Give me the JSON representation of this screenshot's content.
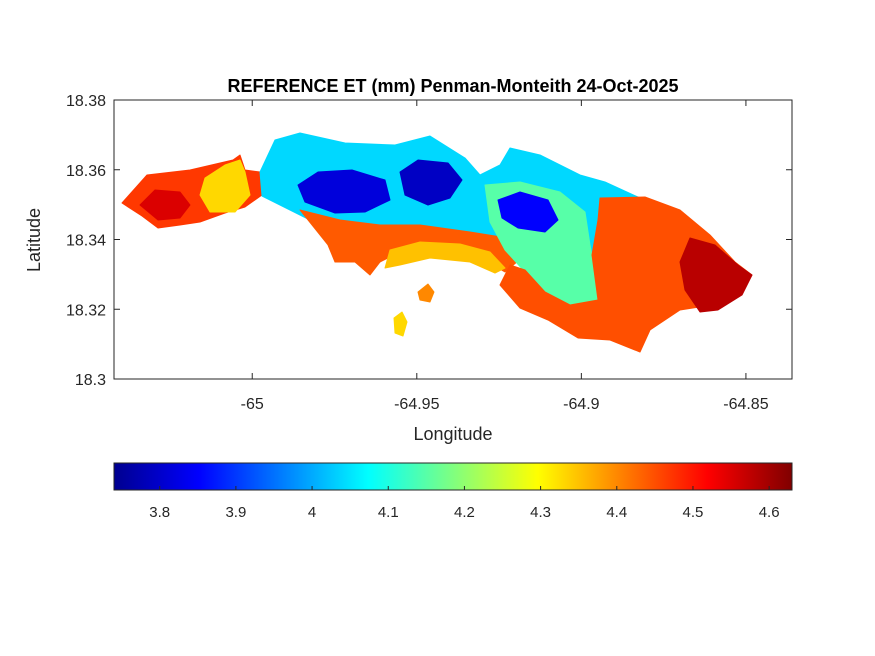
{
  "chart_data": {
    "type": "heatmap",
    "title": "REFERENCE ET (mm) Penman-Monteith 24-Oct-2025",
    "xlabel": "Longitude",
    "ylabel": "Latitude",
    "xlim": [
      -65.042,
      -64.836
    ],
    "ylim": [
      18.3,
      18.38
    ],
    "xticks": [
      -65,
      -64.95,
      -64.9,
      -64.85
    ],
    "xtick_labels": [
      "-65",
      "-64.95",
      "-64.9",
      "-64.85"
    ],
    "yticks": [
      18.3,
      18.32,
      18.34,
      18.36,
      18.38
    ],
    "ytick_labels": [
      "18.3",
      "18.32",
      "18.34",
      "18.36",
      "18.38"
    ],
    "colormap": "jet",
    "colorbar": {
      "range": [
        3.74,
        4.63
      ],
      "placement": "bottom",
      "ticks": [
        3.8,
        3.9,
        4.0,
        4.1,
        4.2,
        4.3,
        4.4,
        4.5,
        4.6
      ],
      "tick_labels": [
        "3.8",
        "3.9",
        "4",
        "4.1",
        "4.2",
        "4.3",
        "4.4",
        "4.5",
        "4.6"
      ]
    },
    "regions": [
      {
        "name": "west-lobe",
        "value": 4.47
      },
      {
        "name": "west-lobe-core",
        "value": 4.55
      },
      {
        "name": "west-neck",
        "value": 4.33
      },
      {
        "name": "central-north",
        "value": 4.04
      },
      {
        "name": "central-south-fringe",
        "value": 4.44
      },
      {
        "name": "central-low-1",
        "value": 3.82
      },
      {
        "name": "central-low-2",
        "value": 3.8
      },
      {
        "name": "east-band",
        "value": 4.15
      },
      {
        "name": "east-low",
        "value": 3.85
      },
      {
        "name": "east-lobe",
        "value": 4.45
      },
      {
        "name": "east-tip",
        "value": 4.58
      },
      {
        "name": "south-patch",
        "value": 4.35
      },
      {
        "name": "small-islet-1",
        "value": 4.4
      },
      {
        "name": "small-islet-2",
        "value": 4.33
      }
    ],
    "grid": false
  }
}
